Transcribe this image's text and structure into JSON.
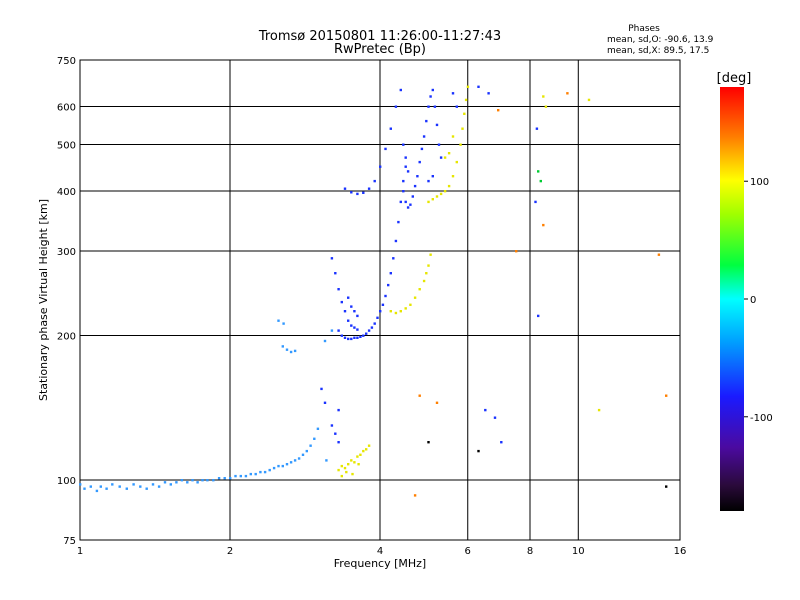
{
  "chart_data": {
    "type": "scatter",
    "title": "Tromsø 20150801 11:26:00-11:27:43",
    "subtitle": "RwPretec (Bp)",
    "xlabel": "Frequency [MHz]",
    "ylabel": "Stationary phase Virtual Height [km]",
    "x_scale": "log",
    "y_scale": "log",
    "xlim": [
      1,
      16
    ],
    "ylim": [
      75,
      750
    ],
    "x_ticks": [
      1,
      2,
      4,
      6,
      8,
      10,
      16
    ],
    "x_tick_labels": [
      "1",
      "2",
      "4",
      "6",
      "8",
      "10",
      "16"
    ],
    "y_ticks": [
      75,
      100,
      200,
      300,
      400,
      500,
      600,
      750
    ],
    "y_tick_labels": [
      "75",
      "100",
      "200",
      "300",
      "400",
      "500",
      "600",
      "750"
    ],
    "grid": true,
    "stats": {
      "heading": "Phases",
      "line_o": "mean, sd,O: -90.6, 13.9",
      "line_x": "mean, sd,X:  89.5, 17.5"
    },
    "colorbar": {
      "label": "[deg]",
      "min": -180,
      "max": 180,
      "ticks": [
        100,
        0,
        -100
      ],
      "tick_labels": [
        "100",
        "0",
        "-100"
      ]
    },
    "series": [
      {
        "value_deg": -130,
        "color": "#3399ff",
        "points": [
          [
            1.0,
            98
          ],
          [
            1.02,
            96
          ],
          [
            1.05,
            97
          ],
          [
            1.08,
            95
          ],
          [
            1.1,
            97
          ],
          [
            1.13,
            96
          ],
          [
            1.16,
            98
          ],
          [
            1.2,
            97
          ],
          [
            1.24,
            96
          ],
          [
            1.28,
            98
          ],
          [
            1.32,
            97
          ],
          [
            1.36,
            96
          ],
          [
            1.4,
            98
          ],
          [
            1.44,
            97
          ],
          [
            1.48,
            99
          ],
          [
            1.52,
            98
          ],
          [
            1.56,
            99
          ],
          [
            1.6,
            100
          ],
          [
            1.64,
            99
          ],
          [
            1.68,
            100
          ],
          [
            1.72,
            99
          ],
          [
            1.76,
            100
          ],
          [
            1.8,
            100
          ],
          [
            1.85,
            100
          ],
          [
            1.9,
            101
          ],
          [
            1.95,
            101
          ],
          [
            2.0,
            101
          ],
          [
            2.05,
            102
          ],
          [
            2.1,
            102
          ],
          [
            2.15,
            102
          ],
          [
            2.2,
            103
          ],
          [
            2.25,
            103
          ],
          [
            2.3,
            104
          ],
          [
            2.35,
            104
          ],
          [
            2.4,
            105
          ],
          [
            2.45,
            106
          ],
          [
            2.5,
            107
          ],
          [
            2.55,
            107
          ],
          [
            2.6,
            108
          ],
          [
            2.65,
            109
          ],
          [
            2.7,
            110
          ],
          [
            2.75,
            111
          ],
          [
            2.8,
            113
          ],
          [
            2.85,
            115
          ],
          [
            2.9,
            118
          ],
          [
            2.95,
            122
          ],
          [
            3.0,
            128
          ],
          [
            2.55,
            190
          ],
          [
            2.6,
            187
          ],
          [
            2.65,
            185
          ],
          [
            2.7,
            186
          ],
          [
            2.5,
            215
          ],
          [
            2.56,
            212
          ],
          [
            3.1,
            195
          ],
          [
            3.2,
            205
          ],
          [
            3.12,
            110
          ]
        ]
      },
      {
        "value_deg": -110,
        "color": "#1a33ff",
        "points": [
          [
            3.2,
            290
          ],
          [
            3.25,
            270
          ],
          [
            3.3,
            250
          ],
          [
            3.35,
            235
          ],
          [
            3.4,
            225
          ],
          [
            3.45,
            215
          ],
          [
            3.5,
            210
          ],
          [
            3.55,
            208
          ],
          [
            3.6,
            206
          ],
          [
            3.5,
            230
          ],
          [
            3.45,
            240
          ],
          [
            3.55,
            225
          ],
          [
            3.6,
            220
          ],
          [
            3.3,
            205
          ],
          [
            3.35,
            200
          ],
          [
            3.4,
            198
          ],
          [
            3.45,
            197
          ],
          [
            3.5,
            197
          ],
          [
            3.55,
            198
          ],
          [
            3.6,
            198
          ],
          [
            3.65,
            199
          ],
          [
            3.7,
            200
          ],
          [
            3.75,
            202
          ],
          [
            3.8,
            205
          ],
          [
            3.85,
            208
          ],
          [
            3.9,
            212
          ],
          [
            3.95,
            218
          ],
          [
            4.0,
            225
          ],
          [
            4.05,
            232
          ],
          [
            4.1,
            242
          ],
          [
            4.15,
            255
          ],
          [
            4.2,
            270
          ],
          [
            4.25,
            290
          ],
          [
            4.3,
            315
          ],
          [
            4.35,
            345
          ],
          [
            4.4,
            380
          ],
          [
            4.45,
            420
          ],
          [
            4.5,
            450
          ],
          [
            4.45,
            400
          ],
          [
            4.5,
            380
          ],
          [
            4.55,
            370
          ],
          [
            4.6,
            375
          ],
          [
            4.65,
            390
          ],
          [
            4.7,
            410
          ],
          [
            4.75,
            430
          ],
          [
            4.8,
            460
          ],
          [
            4.85,
            490
          ],
          [
            4.9,
            520
          ],
          [
            4.95,
            560
          ],
          [
            5.0,
            600
          ],
          [
            5.05,
            630
          ],
          [
            5.1,
            650
          ],
          [
            5.15,
            600
          ],
          [
            5.2,
            550
          ],
          [
            5.25,
            500
          ],
          [
            5.3,
            470
          ],
          [
            5.1,
            430
          ],
          [
            5.0,
            420
          ],
          [
            3.4,
            405
          ],
          [
            3.5,
            398
          ],
          [
            3.6,
            395
          ],
          [
            3.7,
            397
          ],
          [
            3.8,
            405
          ],
          [
            3.9,
            420
          ],
          [
            4.0,
            450
          ],
          [
            4.1,
            490
          ],
          [
            4.2,
            540
          ],
          [
            4.3,
            600
          ],
          [
            4.4,
            650
          ],
          [
            4.45,
            500
          ],
          [
            4.5,
            470
          ],
          [
            4.55,
            440
          ],
          [
            3.2,
            130
          ],
          [
            3.25,
            125
          ],
          [
            3.3,
            140
          ],
          [
            3.1,
            145
          ],
          [
            3.05,
            155
          ],
          [
            3.3,
            120
          ],
          [
            5.6,
            640
          ],
          [
            5.7,
            600
          ],
          [
            6.5,
            140
          ],
          [
            6.8,
            135
          ],
          [
            7.0,
            120
          ],
          [
            8.2,
            380
          ],
          [
            8.3,
            220
          ],
          [
            8.25,
            540
          ],
          [
            6.3,
            660
          ],
          [
            6.6,
            640
          ]
        ]
      },
      {
        "value_deg": 90,
        "color": "#e6e600",
        "points": [
          [
            3.3,
            105
          ],
          [
            3.35,
            107
          ],
          [
            3.4,
            106
          ],
          [
            3.45,
            108
          ],
          [
            3.5,
            110
          ],
          [
            3.55,
            109
          ],
          [
            3.6,
            112
          ],
          [
            3.65,
            113
          ],
          [
            3.7,
            115
          ],
          [
            3.75,
            116
          ],
          [
            3.8,
            118
          ],
          [
            3.35,
            102
          ],
          [
            3.42,
            104
          ],
          [
            3.52,
            103
          ],
          [
            3.62,
            108
          ],
          [
            4.2,
            225
          ],
          [
            4.3,
            223
          ],
          [
            4.4,
            225
          ],
          [
            4.5,
            228
          ],
          [
            4.6,
            232
          ],
          [
            4.7,
            240
          ],
          [
            4.8,
            250
          ],
          [
            4.9,
            260
          ],
          [
            4.95,
            270
          ],
          [
            5.0,
            280
          ],
          [
            5.05,
            295
          ],
          [
            5.0,
            380
          ],
          [
            5.1,
            385
          ],
          [
            5.2,
            390
          ],
          [
            5.3,
            395
          ],
          [
            5.4,
            400
          ],
          [
            5.5,
            410
          ],
          [
            5.6,
            430
          ],
          [
            5.7,
            460
          ],
          [
            5.8,
            500
          ],
          [
            5.85,
            540
          ],
          [
            5.9,
            580
          ],
          [
            5.95,
            620
          ],
          [
            6.0,
            660
          ],
          [
            5.6,
            520
          ],
          [
            5.5,
            480
          ],
          [
            5.4,
            470
          ],
          [
            8.5,
            630
          ],
          [
            8.6,
            600
          ],
          [
            10.5,
            620
          ],
          [
            11.0,
            140
          ]
        ]
      },
      {
        "value_deg": 140,
        "color": "#ff7f00",
        "points": [
          [
            4.8,
            150
          ],
          [
            4.7,
            93
          ],
          [
            6.9,
            590
          ],
          [
            7.5,
            300
          ],
          [
            8.5,
            340
          ],
          [
            9.5,
            640
          ],
          [
            14.5,
            295
          ],
          [
            15.0,
            150
          ],
          [
            5.2,
            145
          ]
        ]
      },
      {
        "value_deg": 40,
        "color": "#00cc33",
        "points": [
          [
            8.3,
            440
          ],
          [
            8.4,
            420
          ]
        ]
      },
      {
        "value_deg": -180,
        "color": "#000000",
        "points": [
          [
            15.0,
            97
          ],
          [
            6.3,
            115
          ],
          [
            5.0,
            120
          ]
        ]
      }
    ]
  }
}
